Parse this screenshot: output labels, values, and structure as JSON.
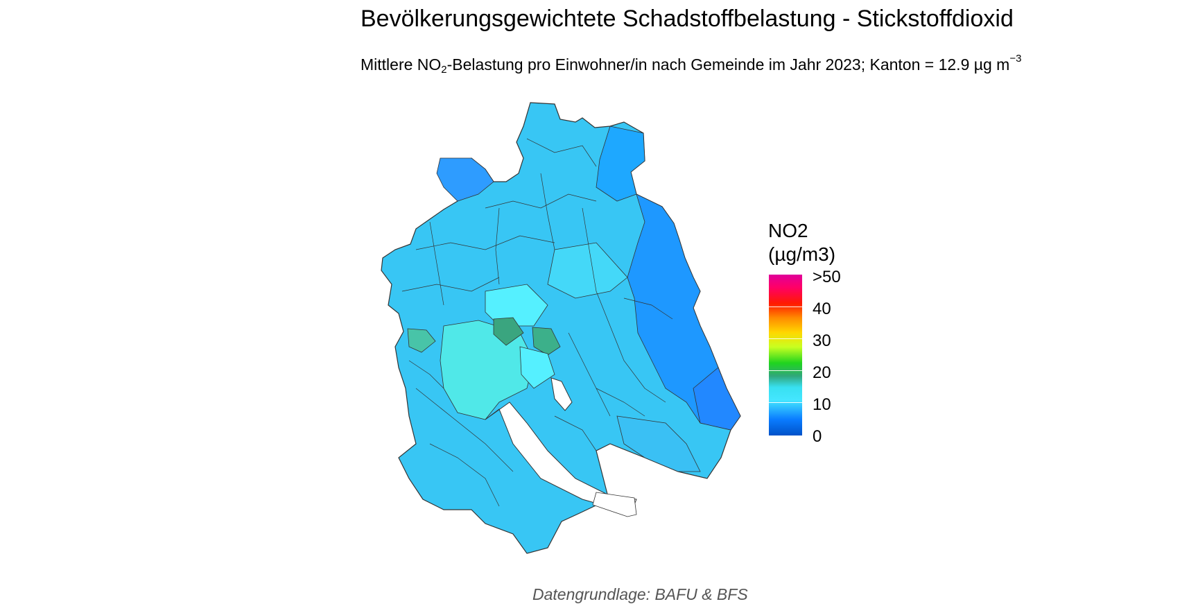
{
  "title": "Bevölkerungsgewichtete Schadstoffbelastung - Stickstoffdioxid",
  "subtitle": {
    "part1": "Mittlere NO",
    "subscript": "2",
    "part2": "-Belastung pro Einwohner/in nach Gemeinde im Jahr 2023; Kanton = 12.9 µg m",
    "superscript": "−3"
  },
  "legend": {
    "title_line1": "NO2",
    "title_line2": "(µg/m3)",
    "labels": [
      ">50",
      "40",
      "30",
      "20",
      "10",
      "0"
    ]
  },
  "caption": "Datengrundlage: BAFU & BFS",
  "colors": {
    "lake": "#ffffff",
    "border": "#333333",
    "low": "#1e90ff",
    "mid": "#44e0ff",
    "high": "#3aa57f"
  }
}
